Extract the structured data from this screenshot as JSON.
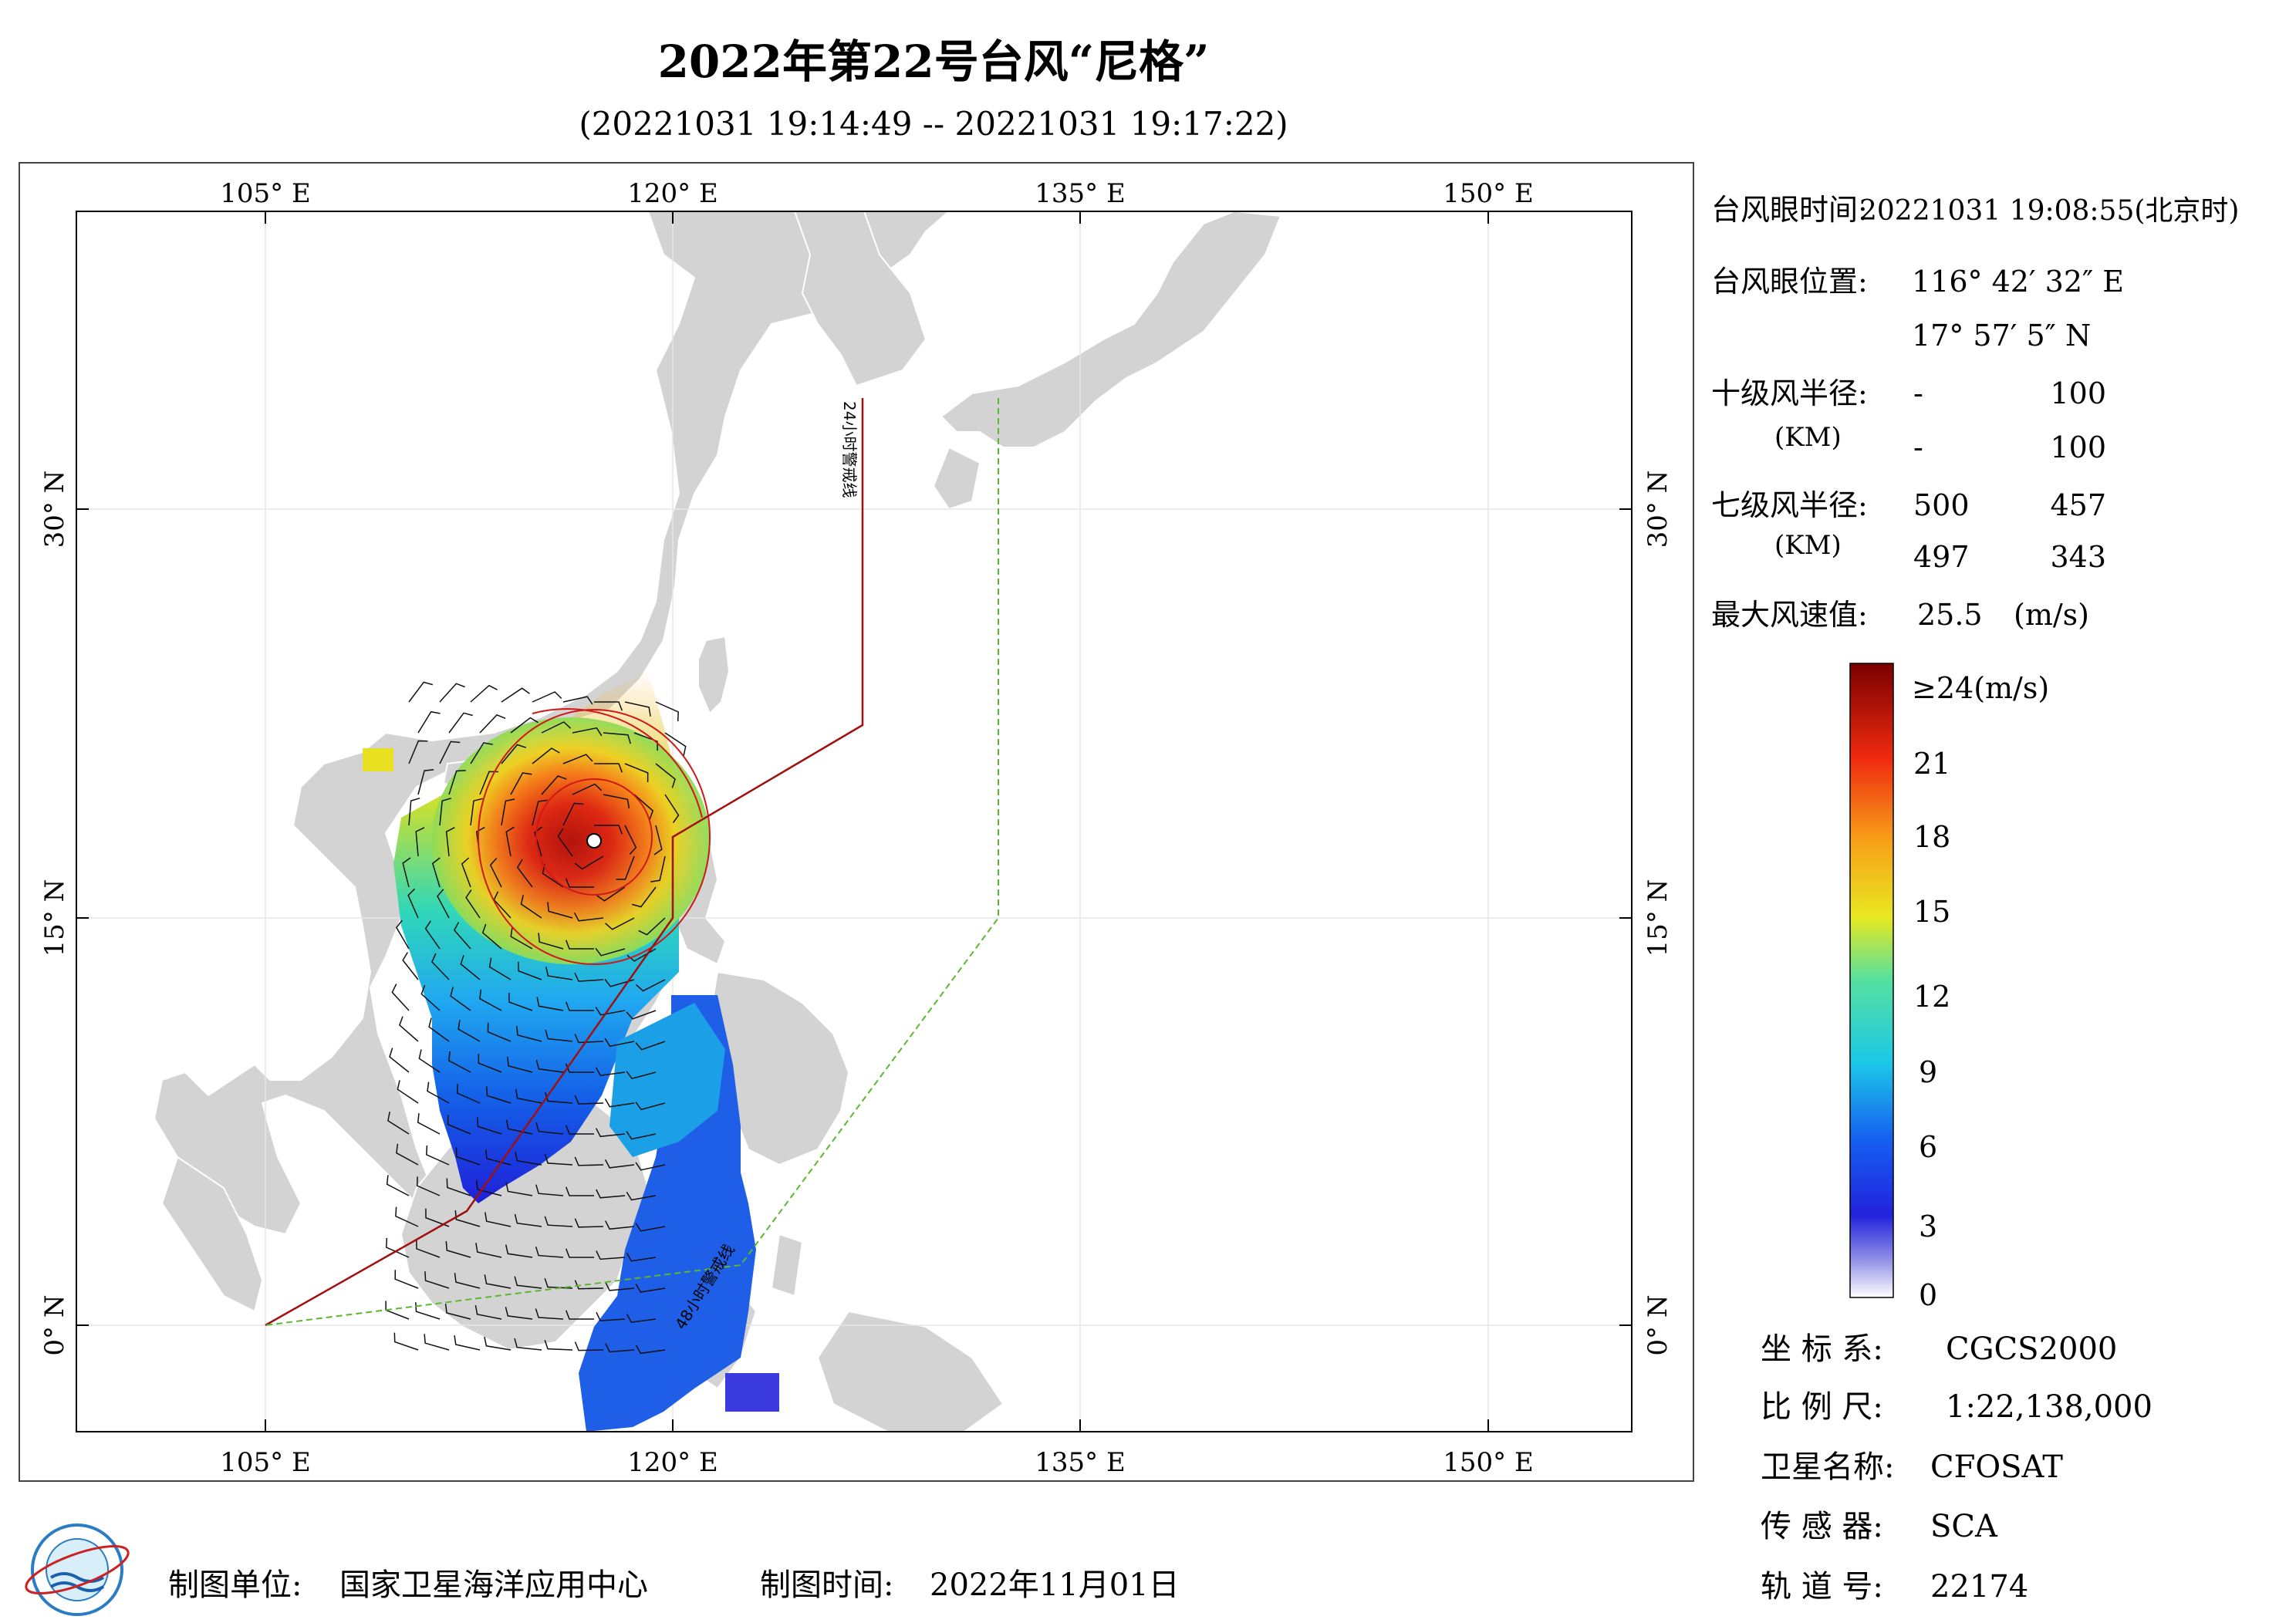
{
  "title": "2022年第22号台风“尼格”",
  "subtitle": "(20221031 19:14:49 -- 20221031 19:17:22)",
  "axes": {
    "top_lon": [
      "105° E",
      "120° E",
      "135° E",
      "150° E"
    ],
    "bottom_lon": [
      "105° E",
      "120° E",
      "135° E",
      "150° E"
    ],
    "left_lat": [
      "30° N",
      "15° N",
      "0° N"
    ],
    "right_lat": [
      "30° N",
      "15° N",
      "0° N"
    ]
  },
  "warning_lines": {
    "line_24h": "24小时警戒线",
    "line_48h": "48小时警戒线"
  },
  "info": {
    "eye_time_label": "台风眼时间:",
    "eye_time_value": "20221031 19:08:55(北京时)",
    "eye_pos_label": "台风眼位置:",
    "eye_lon": "116° 42′ 32″ E",
    "eye_lat": "17° 57′ 5″ N",
    "r10_label": "十级风半径:",
    "r10_unit": "(KM)",
    "r10_values": [
      "-",
      "100",
      "-",
      "100"
    ],
    "r7_label": "七级风半径:",
    "r7_unit": "(KM)",
    "r7_values": [
      "500",
      "457",
      "497",
      "343"
    ],
    "max_wind_label": "最大风速值:",
    "max_wind_value": "25.5",
    "max_wind_unit": "(m/s)"
  },
  "colorbar": {
    "top_label": "≥24(m/s)",
    "ticks": [
      "21",
      "18",
      "15",
      "12",
      "9",
      "6",
      "3",
      "0"
    ]
  },
  "meta": {
    "crs_label": "坐 标 系:",
    "crs_value": "CGCS2000",
    "scale_label": "比 例 尺:",
    "scale_value": "1:22,138,000",
    "satellite_label": "卫星名称:",
    "satellite_value": "CFOSAT",
    "sensor_label": "传 感 器:",
    "sensor_value": "SCA",
    "orbit_label": "轨 道 号:",
    "orbit_value": "22174"
  },
  "footer": {
    "producer_label": "制图单位:",
    "producer_value": "国家卫星海洋应用中心",
    "date_label": "制图时间:",
    "date_value": "2022年11月01日"
  },
  "colors": {
    "land": "#d3d3d3",
    "sea": "#ffffff",
    "warning_24h": "#a01010",
    "warning_48h": "#5cb82c",
    "typhoon_circle": "#d01818"
  }
}
